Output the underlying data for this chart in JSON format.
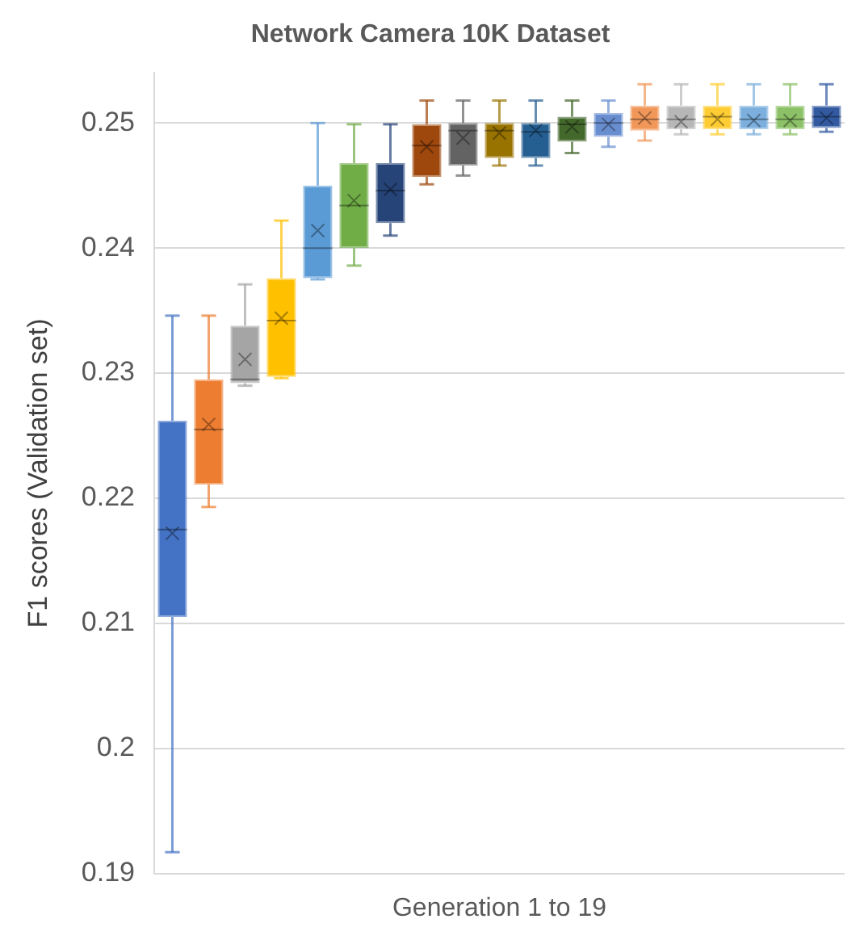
{
  "chart_data": {
    "type": "box",
    "title": "Network Camera 10K Dataset",
    "xlabel": "Generation 1 to 19",
    "ylabel": "F1 scores (Validation set)",
    "categories": [
      null,
      null,
      null,
      null,
      null,
      null,
      null,
      null,
      null,
      null,
      null,
      null,
      null,
      null,
      null,
      null,
      null,
      null,
      null
    ],
    "colors": [
      "#4472c4",
      "#ed7d31",
      "#a5a5a5",
      "#ffc000",
      "#5b9bd5",
      "#70ad47",
      "#264478",
      "#9e480e",
      "#636363",
      "#997300",
      "#255e91",
      "#43682b",
      "#698ed0",
      "#f1975a",
      "#b7b7b7",
      "#ffcd33",
      "#7cafdd",
      "#8cc168",
      "#335aa1"
    ],
    "boxes": [
      {
        "low": 0.1917,
        "q1": 0.2105,
        "median": 0.2175,
        "q3": 0.2262,
        "high": 0.2346,
        "mean": 0.2172
      },
      {
        "low": 0.2193,
        "q1": 0.2211,
        "median": 0.2255,
        "q3": 0.2295,
        "high": 0.2346,
        "mean": 0.2259
      },
      {
        "low": 0.229,
        "q1": 0.2292,
        "median": 0.2295,
        "q3": 0.2338,
        "high": 0.2371,
        "mean": 0.2311
      },
      {
        "low": 0.2296,
        "q1": 0.2297,
        "median": 0.2342,
        "q3": 0.2376,
        "high": 0.2422,
        "mean": 0.2344
      },
      {
        "low": 0.2375,
        "q1": 0.2376,
        "median": 0.24,
        "q3": 0.245,
        "high": 0.25,
        "mean": 0.2414
      },
      {
        "low": 0.2386,
        "q1": 0.24,
        "median": 0.2434,
        "q3": 0.2468,
        "high": 0.2499,
        "mean": 0.2438
      },
      {
        "low": 0.241,
        "q1": 0.242,
        "median": 0.2446,
        "q3": 0.2468,
        "high": 0.2499,
        "mean": 0.2447
      },
      {
        "low": 0.2451,
        "q1": 0.2457,
        "median": 0.2482,
        "q3": 0.2499,
        "high": 0.2518,
        "mean": 0.2481
      },
      {
        "low": 0.2458,
        "q1": 0.2466,
        "median": 0.2494,
        "q3": 0.25,
        "high": 0.2518,
        "mean": 0.2488
      },
      {
        "low": 0.2466,
        "q1": 0.2472,
        "median": 0.2494,
        "q3": 0.25,
        "high": 0.2518,
        "mean": 0.2492
      },
      {
        "low": 0.2466,
        "q1": 0.2472,
        "median": 0.2493,
        "q3": 0.25,
        "high": 0.2518,
        "mean": 0.2494
      },
      {
        "low": 0.2476,
        "q1": 0.2485,
        "median": 0.2499,
        "q3": 0.2505,
        "high": 0.2518,
        "mean": 0.2497
      },
      {
        "low": 0.2481,
        "q1": 0.2489,
        "median": 0.25,
        "q3": 0.2508,
        "high": 0.2518,
        "mean": 0.2499
      },
      {
        "low": 0.2486,
        "q1": 0.2494,
        "median": 0.2503,
        "q3": 0.2514,
        "high": 0.2531,
        "mean": 0.2504
      },
      {
        "low": 0.2491,
        "q1": 0.2495,
        "median": 0.2503,
        "q3": 0.2514,
        "high": 0.2531,
        "mean": 0.2501
      },
      {
        "low": 0.2491,
        "q1": 0.2495,
        "median": 0.2505,
        "q3": 0.2514,
        "high": 0.2531,
        "mean": 0.2503
      },
      {
        "low": 0.2491,
        "q1": 0.2495,
        "median": 0.2503,
        "q3": 0.2514,
        "high": 0.2531,
        "mean": 0.2502
      },
      {
        "low": 0.2491,
        "q1": 0.2495,
        "median": 0.2503,
        "q3": 0.2514,
        "high": 0.2531,
        "mean": 0.2502
      },
      {
        "low": 0.2493,
        "q1": 0.2496,
        "median": 0.2505,
        "q3": 0.2514,
        "high": 0.2531,
        "mean": 0.2504
      }
    ],
    "ylim": [
      0.19,
      0.254
    ],
    "yticks": [
      0.19,
      0.2,
      0.21,
      0.22,
      0.23,
      0.24,
      0.25
    ],
    "grid": "y",
    "tick_labels": "y",
    "legend": false
  }
}
